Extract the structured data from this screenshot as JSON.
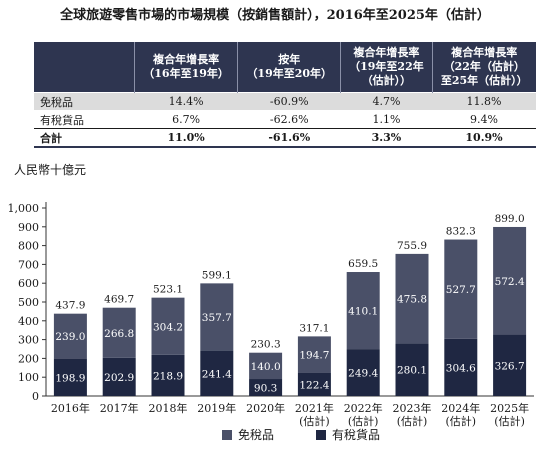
{
  "title": "全球旅遊零售市場的市場規模（按銷售額計），2016年至2025年（估計）",
  "table": {
    "headers": [
      "",
      "複合年增長率\n（16年至19年）",
      "按年\n（19年至20年）",
      "複合年增長率\n（19年至22年\n（估計））",
      "複合年增長率\n（22年（估計）\n至25年（估計））"
    ],
    "rows": [
      [
        "免稅品",
        "14.4%",
        "-60.9%",
        "4.7%",
        "11.8%"
      ],
      [
        "有稅貨品",
        "6.7%",
        "-62.6%",
        "1.1%",
        "9.4%"
      ],
      [
        "合計",
        "11.0%",
        "-61.6%",
        "3.3%",
        "10.9%"
      ]
    ]
  },
  "chart_data": {
    "type": "bar",
    "stacked": true,
    "unit_label": "人民幣十億元",
    "categories": [
      "2016年",
      "2017年",
      "2018年",
      "2019年",
      "2020年",
      "2021年\n(估計)",
      "2022年\n(估計)",
      "2023年\n(估計)",
      "2024年\n(估計)",
      "2025年\n(估計)"
    ],
    "series": [
      {
        "name": "有稅貨品",
        "color": "#1f2742",
        "values": [
          198.9,
          202.9,
          218.9,
          241.4,
          90.3,
          122.4,
          249.4,
          280.1,
          304.6,
          326.7
        ]
      },
      {
        "name": "免稅品",
        "color": "#4a5068",
        "values": [
          239.0,
          266.8,
          304.2,
          357.7,
          140.0,
          194.7,
          410.1,
          475.8,
          527.7,
          572.4
        ]
      }
    ],
    "totals": [
      437.9,
      469.7,
      523.1,
      599.1,
      230.3,
      317.1,
      659.5,
      755.9,
      832.3,
      899.0
    ],
    "ylim": [
      0,
      1000
    ],
    "yticks": [
      "0",
      "100",
      "200",
      "300",
      "400",
      "500",
      "600",
      "700",
      "800",
      "900",
      "1,000"
    ],
    "legend": [
      "免稅品",
      "有稅貨品"
    ],
    "legend_position": "bottom"
  }
}
